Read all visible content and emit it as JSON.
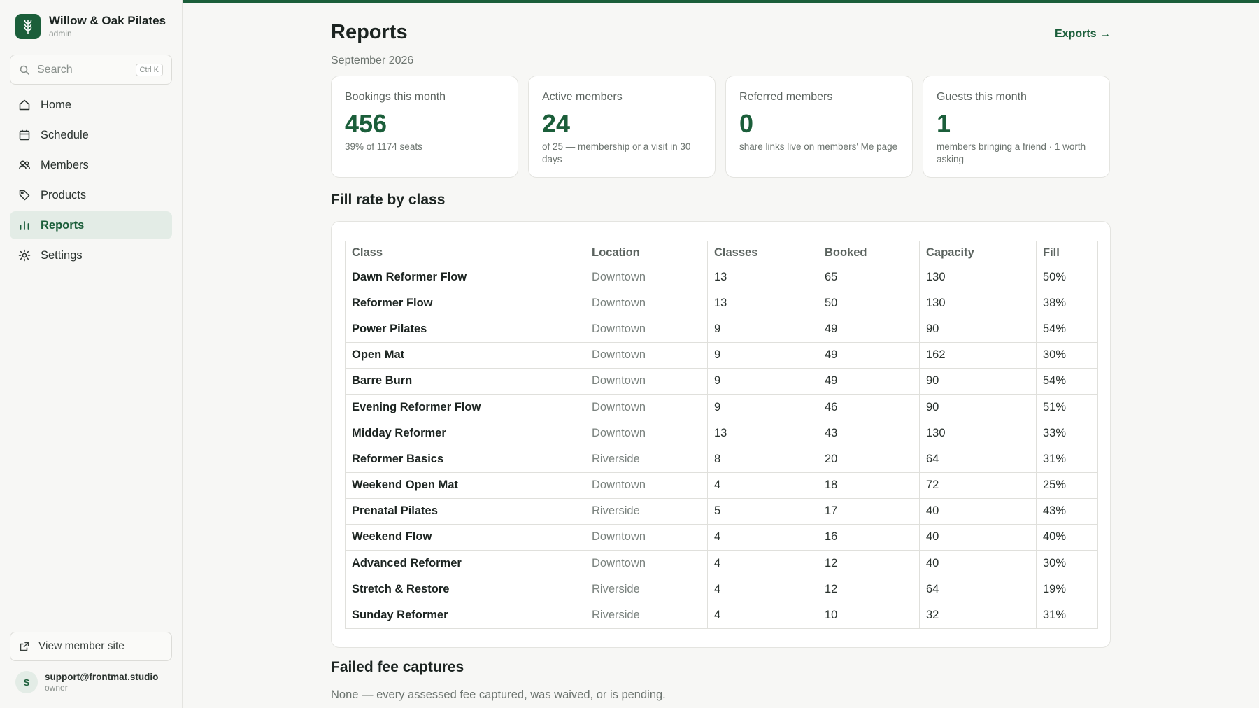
{
  "brand": {
    "name": "Willow & Oak Pilates",
    "role": "admin"
  },
  "search": {
    "placeholder": "Search",
    "shortcut": "Ctrl K"
  },
  "sidebar": {
    "items": [
      {
        "label": "Home",
        "icon": "home-icon"
      },
      {
        "label": "Schedule",
        "icon": "calendar-icon"
      },
      {
        "label": "Members",
        "icon": "users-icon"
      },
      {
        "label": "Products",
        "icon": "tag-icon"
      },
      {
        "label": "Reports",
        "icon": "bar-chart-icon",
        "active": true
      },
      {
        "label": "Settings",
        "icon": "gear-icon"
      }
    ],
    "view_site": "View member site",
    "user": {
      "initial": "S",
      "email": "support@frontmat.studio",
      "role": "owner"
    }
  },
  "header": {
    "title": "Reports",
    "subtitle": "September 2026",
    "exports_link": "Exports →"
  },
  "stats": [
    {
      "label": "Bookings this month",
      "value": "456",
      "note": "39% of 1174 seats"
    },
    {
      "label": "Active members",
      "value": "24",
      "note": "of 25 — membership or a visit in 30 days"
    },
    {
      "label": "Referred members",
      "value": "0",
      "note": "share links live on members' Me page"
    },
    {
      "label": "Guests this month",
      "value": "1",
      "note": "members bringing a friend · 1 worth asking"
    }
  ],
  "fill_rate": {
    "title": "Fill rate by class",
    "columns": [
      "Class",
      "Location",
      "Classes",
      "Booked",
      "Capacity",
      "Fill"
    ],
    "rows": [
      [
        "Dawn Reformer Flow",
        "Downtown",
        "13",
        "65",
        "130",
        "50%"
      ],
      [
        "Reformer Flow",
        "Downtown",
        "13",
        "50",
        "130",
        "38%"
      ],
      [
        "Power Pilates",
        "Downtown",
        "9",
        "49",
        "90",
        "54%"
      ],
      [
        "Open Mat",
        "Downtown",
        "9",
        "49",
        "162",
        "30%"
      ],
      [
        "Barre Burn",
        "Downtown",
        "9",
        "49",
        "90",
        "54%"
      ],
      [
        "Evening Reformer Flow",
        "Downtown",
        "9",
        "46",
        "90",
        "51%"
      ],
      [
        "Midday Reformer",
        "Downtown",
        "13",
        "43",
        "130",
        "33%"
      ],
      [
        "Reformer Basics",
        "Riverside",
        "8",
        "20",
        "64",
        "31%"
      ],
      [
        "Weekend Open Mat",
        "Downtown",
        "4",
        "18",
        "72",
        "25%"
      ],
      [
        "Prenatal Pilates",
        "Riverside",
        "5",
        "17",
        "40",
        "43%"
      ],
      [
        "Weekend Flow",
        "Downtown",
        "4",
        "16",
        "40",
        "40%"
      ],
      [
        "Advanced Reformer",
        "Downtown",
        "4",
        "12",
        "40",
        "30%"
      ],
      [
        "Stretch & Restore",
        "Riverside",
        "4",
        "12",
        "64",
        "19%"
      ],
      [
        "Sunday Reformer",
        "Riverside",
        "4",
        "10",
        "32",
        "31%"
      ]
    ]
  },
  "failed_fees": {
    "title": "Failed fee captures",
    "text": "None — every assessed fee captured, was waived, or is pending."
  },
  "colors": {
    "accent": "#1b5e3a",
    "active_bg": "#e3ece6"
  }
}
